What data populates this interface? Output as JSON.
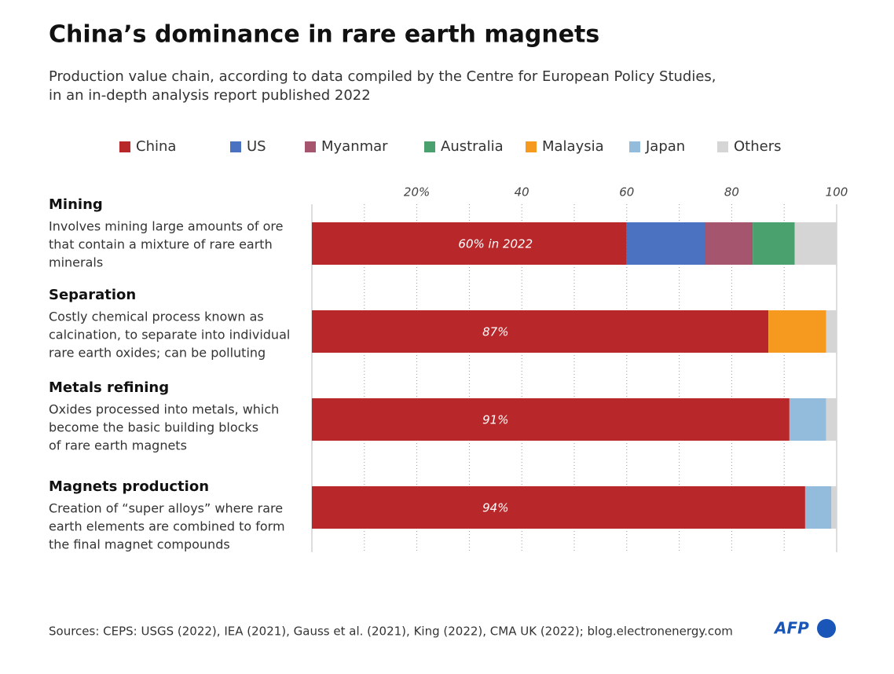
{
  "chart_data": {
    "type": "stacked-bar",
    "orientation": "horizontal",
    "title": "China’s dominance in rare earth magnets",
    "subtitle": [
      "Production value chain, according to data compiled by the Centre for European Policy Studies,",
      "in an in-depth analysis report published 2022"
    ],
    "categories": [
      "Mining",
      "Separation",
      "Metals refining",
      "Magnets production"
    ],
    "descriptions": [
      [
        "Involves mining large amounts of ore",
        "that contain a mixture of rare earth",
        "minerals"
      ],
      [
        "Costly chemical process known as",
        "calcination, to separate into individual",
        "rare earth oxides; can be polluting"
      ],
      [
        "Oxides processed into metals, which",
        "become the basic building blocks",
        "of rare earth magnets"
      ],
      [
        "Creation of “super alloys” where rare",
        "earth elements are combined to form",
        "the final magnet compounds"
      ]
    ],
    "series": [
      {
        "name": "China",
        "color": "#b8282a",
        "values": [
          60,
          87,
          91,
          94
        ],
        "value_labels": [
          "60% in 2022",
          "87%",
          "91%",
          "94%"
        ]
      },
      {
        "name": "US",
        "color": "#4a72c1",
        "values": [
          15,
          null,
          null,
          null
        ]
      },
      {
        "name": "Myanmar",
        "color": "#a5556e",
        "values": [
          9,
          null,
          null,
          null
        ]
      },
      {
        "name": "Australia",
        "color": "#4aa16e",
        "values": [
          8,
          null,
          null,
          null
        ]
      },
      {
        "name": "Malaysia",
        "color": "#f6991f",
        "values": [
          null,
          11,
          null,
          null
        ]
      },
      {
        "name": "Japan",
        "color": "#93bcdc",
        "values": [
          null,
          null,
          7,
          5
        ]
      },
      {
        "name": "Others",
        "color": "#d5d5d5",
        "values": [
          8,
          2,
          2,
          1
        ]
      }
    ],
    "xlim": [
      0,
      100
    ],
    "xticks": [
      {
        "value": 20,
        "label": "20%"
      },
      40,
      60,
      80,
      100
    ],
    "xminorticks": [
      10,
      30,
      50,
      70,
      90
    ],
    "grid": true,
    "legend": "top",
    "source": "Sources: CEPS: USGS (2022), IEA (2021), Gauss et al. (2021), King (2022), CMA UK (2022); blog.electronenergy.com",
    "logo": "AFP"
  }
}
